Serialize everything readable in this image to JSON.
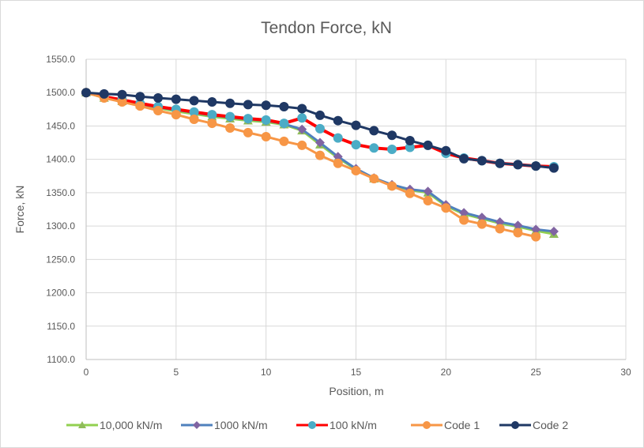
{
  "chart_data": {
    "type": "line",
    "title": "Tendon Force, kN",
    "xlabel": "Position, m",
    "ylabel": "Force, kN",
    "xlim": [
      0,
      30
    ],
    "ylim": [
      1100,
      1550
    ],
    "x_ticks": [
      "0",
      "5",
      "10",
      "15",
      "20",
      "25",
      "30"
    ],
    "x_tick_values": [
      0,
      5,
      10,
      15,
      20,
      25,
      30
    ],
    "y_ticks": [
      "1100.0",
      "1150.0",
      "1200.0",
      "1250.0",
      "1300.0",
      "1350.0",
      "1400.0",
      "1450.0",
      "1500.0",
      "1550.0"
    ],
    "y_tick_values": [
      1100,
      1150,
      1200,
      1250,
      1300,
      1350,
      1400,
      1450,
      1500,
      1550
    ],
    "grid": true,
    "legend_position": "bottom",
    "series": [
      {
        "name": "10,000 kN/m",
        "line_color": "#92d050",
        "marker_color": "#8fbc5a",
        "marker": "triangle",
        "x": [
          0,
          1,
          2,
          3,
          4,
          5,
          6,
          7,
          8,
          9,
          10,
          11,
          12,
          13,
          14,
          15,
          16,
          17,
          18,
          19,
          20,
          21,
          22,
          23,
          24,
          25,
          26
        ],
        "y": [
          1500,
          1492,
          1487,
          1482,
          1477,
          1472,
          1468,
          1464,
          1461,
          1458,
          1456,
          1452,
          1443,
          1422,
          1402,
          1385,
          1371,
          1361,
          1354,
          1350,
          1330,
          1318,
          1311,
          1304,
          1299,
          1293,
          1288
        ]
      },
      {
        "name": "1000 kN/m",
        "line_color": "#4f81bd",
        "marker_color": "#8064a2",
        "marker": "diamond",
        "x": [
          0,
          1,
          2,
          3,
          4,
          5,
          6,
          7,
          8,
          9,
          10,
          11,
          12,
          13,
          14,
          15,
          16,
          17,
          18,
          19,
          20,
          21,
          22,
          23,
          24,
          25,
          26
        ],
        "y": [
          1500,
          1493,
          1488,
          1483,
          1478,
          1474,
          1470,
          1466,
          1463,
          1460,
          1458,
          1453,
          1445,
          1425,
          1404,
          1386,
          1372,
          1362,
          1355,
          1352,
          1332,
          1320,
          1313,
          1306,
          1301,
          1295,
          1292
        ]
      },
      {
        "name": "100 kN/m",
        "line_color": "#ff0000",
        "marker_color": "#4bacc6",
        "marker": "circle",
        "x": [
          0,
          1,
          2,
          3,
          4,
          5,
          6,
          7,
          8,
          9,
          10,
          11,
          12,
          13,
          14,
          15,
          16,
          17,
          18,
          19,
          20,
          21,
          22,
          23,
          24,
          25,
          26
        ],
        "y": [
          1500,
          1494,
          1489,
          1484,
          1479,
          1475,
          1471,
          1467,
          1464,
          1461,
          1459,
          1454,
          1462,
          1446,
          1432,
          1422,
          1417,
          1415,
          1418,
          1421,
          1409,
          1402,
          1398,
          1394,
          1392,
          1390,
          1389
        ]
      },
      {
        "name": "Code 1",
        "line_color": "#f79646",
        "marker_color": "#f79646",
        "marker": "circle",
        "x": [
          0,
          1,
          2,
          3,
          4,
          5,
          6,
          7,
          8,
          9,
          10,
          11,
          12,
          13,
          14,
          15,
          16,
          17,
          18,
          19,
          20,
          21,
          22,
          23,
          24,
          25
        ],
        "y": [
          1500,
          1492,
          1486,
          1480,
          1473,
          1467,
          1460,
          1454,
          1447,
          1440,
          1434,
          1427,
          1421,
          1406,
          1394,
          1383,
          1371,
          1360,
          1349,
          1338,
          1327,
          1309,
          1303,
          1296,
          1290,
          1284
        ]
      },
      {
        "name": "Code 2",
        "line_color": "#1f3864",
        "marker_color": "#1f3864",
        "marker": "circle",
        "x": [
          0,
          1,
          2,
          3,
          4,
          5,
          6,
          7,
          8,
          9,
          10,
          11,
          12,
          13,
          14,
          15,
          16,
          17,
          18,
          19,
          20,
          21,
          22,
          23,
          24,
          25,
          26
        ],
        "y": [
          1500,
          1498,
          1497,
          1494,
          1492,
          1490,
          1488,
          1486,
          1484,
          1482,
          1481,
          1479,
          1476,
          1466,
          1458,
          1451,
          1443,
          1436,
          1428,
          1421,
          1413,
          1401,
          1398,
          1394,
          1392,
          1390,
          1387
        ]
      }
    ]
  }
}
